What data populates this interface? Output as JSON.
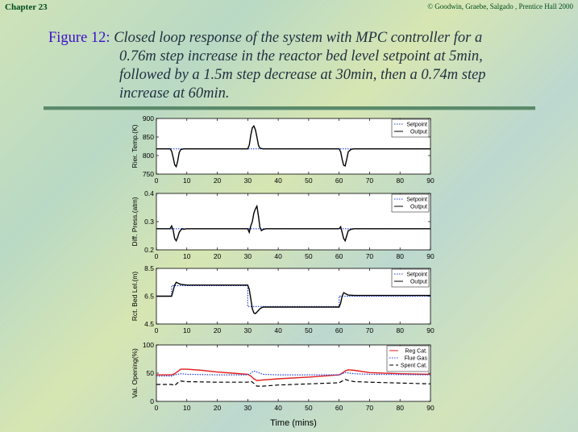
{
  "header": {
    "chapter": "Chapter 23",
    "copyright": "© Goodwin, Graebe, Salgado , Prentice Hall 2000"
  },
  "caption": {
    "figure_label": "Figure 12:",
    "line1": "Closed loop response of the system with MPC controller for a",
    "line2": "0.76m step increase in the reactor bed level setpoint at 5min,",
    "line3": "followed by a 1.5m step decrease at 30min, then a 0.74m step",
    "line4": "increase at 60min."
  },
  "chart_data": [
    {
      "type": "line",
      "ylabel": "Rier. Temp.(K)",
      "ylim": [
        750,
        900
      ],
      "yticks": [
        750,
        800,
        850,
        900
      ],
      "xlim": [
        0,
        90
      ],
      "xticks": [
        0,
        10,
        20,
        30,
        40,
        50,
        60,
        70,
        80,
        90
      ],
      "legend": [
        "Setpoint",
        "Output"
      ],
      "series": [
        {
          "name": "Setpoint",
          "color": "#1f3fd6",
          "dash": "dotted",
          "x": [
            0,
            90
          ],
          "y": [
            818,
            818
          ]
        },
        {
          "name": "Output",
          "color": "#000000",
          "dash": "solid",
          "x": [
            0,
            4.5,
            5,
            5.5,
            6,
            6.5,
            7,
            7.5,
            8,
            9,
            10,
            30,
            30.5,
            31,
            31.5,
            32,
            32.5,
            33,
            33.5,
            34,
            35,
            60,
            60.5,
            61,
            61.5,
            62,
            62.5,
            63,
            64,
            65,
            90
          ],
          "y": [
            818,
            818,
            812,
            795,
            775,
            770,
            785,
            808,
            816,
            818,
            818,
            818,
            828,
            855,
            875,
            880,
            870,
            850,
            828,
            820,
            818,
            818,
            810,
            790,
            774,
            772,
            790,
            810,
            817,
            818,
            818
          ]
        }
      ]
    },
    {
      "type": "line",
      "ylabel": "Diff. Press.(atm)",
      "ylim": [
        0.2,
        0.4
      ],
      "yticks": [
        0.2,
        0.3,
        0.4
      ],
      "xlim": [
        0,
        90
      ],
      "xticks": [
        0,
        10,
        20,
        30,
        40,
        50,
        60,
        70,
        80,
        90
      ],
      "legend": [
        "Setpoint",
        "Output"
      ],
      "series": [
        {
          "name": "Setpoint",
          "color": "#1f3fd6",
          "dash": "dotted",
          "x": [
            0,
            90
          ],
          "y": [
            0.275,
            0.275
          ]
        },
        {
          "name": "Output",
          "color": "#000000",
          "dash": "solid",
          "x": [
            0,
            4.5,
            5,
            5.5,
            6,
            6.5,
            7,
            7.5,
            8,
            8.5,
            9,
            10,
            30,
            30.5,
            31,
            31.5,
            32,
            32.5,
            33,
            33.5,
            34,
            34.5,
            35,
            36,
            60,
            60.5,
            61,
            61.5,
            62,
            62.5,
            63,
            64,
            65,
            90
          ],
          "y": [
            0.275,
            0.275,
            0.285,
            0.27,
            0.24,
            0.232,
            0.245,
            0.262,
            0.27,
            0.275,
            0.273,
            0.275,
            0.275,
            0.262,
            0.285,
            0.3,
            0.33,
            0.345,
            0.355,
            0.32,
            0.28,
            0.268,
            0.272,
            0.275,
            0.275,
            0.282,
            0.262,
            0.24,
            0.232,
            0.25,
            0.268,
            0.273,
            0.275,
            0.275
          ]
        }
      ]
    },
    {
      "type": "line",
      "ylabel": "Rct. Bed Lel.(m)",
      "ylim": [
        4.5,
        8.5
      ],
      "yticks": [
        4.5,
        6.5,
        8.5
      ],
      "xlim": [
        0,
        90
      ],
      "xticks": [
        0,
        10,
        20,
        30,
        40,
        50,
        60,
        70,
        80,
        90
      ],
      "legend": [
        "Setpoint",
        "Output"
      ],
      "series": [
        {
          "name": "Setpoint",
          "color": "#1f3fd6",
          "dash": "dotted",
          "x": [
            0,
            5,
            5,
            30,
            30,
            60,
            60,
            90
          ],
          "y": [
            6.5,
            6.5,
            7.26,
            7.26,
            5.76,
            5.76,
            6.5,
            6.5
          ]
        },
        {
          "name": "Output",
          "color": "#000000",
          "dash": "solid",
          "x": [
            0,
            5,
            5.5,
            6,
            6.5,
            7,
            8,
            10,
            30,
            30.5,
            31,
            31.5,
            32,
            32.5,
            33,
            34,
            35,
            60,
            60.5,
            61,
            61.5,
            62,
            63,
            65,
            90
          ],
          "y": [
            6.5,
            6.5,
            6.9,
            7.3,
            7.5,
            7.45,
            7.35,
            7.3,
            7.3,
            7.0,
            6.3,
            5.6,
            5.3,
            5.25,
            5.35,
            5.6,
            5.72,
            5.72,
            6.0,
            6.5,
            6.75,
            6.7,
            6.58,
            6.55,
            6.55
          ]
        }
      ]
    },
    {
      "type": "line",
      "ylabel": "Val. Opening(%)",
      "xlabel": "Time (mins)",
      "ylim": [
        0,
        100
      ],
      "yticks": [
        0,
        50,
        100
      ],
      "xlim": [
        0,
        90
      ],
      "xticks": [
        0,
        10,
        20,
        30,
        40,
        50,
        60,
        70,
        80,
        90
      ],
      "legend": [
        "Reg Cat.",
        "Flue Gas",
        "Spent Cat."
      ],
      "series": [
        {
          "name": "Reg Cat.",
          "color": "#e21c1c",
          "dash": "solid",
          "x": [
            0,
            5,
            6,
            7,
            8,
            10,
            15,
            20,
            25,
            30,
            31,
            32,
            33,
            35,
            40,
            50,
            60,
            61,
            62,
            63,
            65,
            70,
            80,
            90
          ],
          "y": [
            47,
            47,
            49,
            53,
            57,
            57,
            55,
            52,
            50,
            48,
            45,
            40,
            37,
            38,
            40,
            43,
            47,
            50,
            54,
            56,
            55,
            51,
            49,
            48
          ]
        },
        {
          "name": "Flue Gas",
          "color": "#1f3fd6",
          "dash": "dotted",
          "x": [
            0,
            5,
            6,
            8,
            10,
            20,
            30,
            31,
            32,
            33,
            35,
            40,
            60,
            61,
            62,
            65,
            70,
            90
          ],
          "y": [
            45,
            45,
            47,
            49,
            48,
            47,
            47,
            50,
            54,
            52,
            48,
            47,
            47,
            49,
            51,
            49,
            48,
            47
          ]
        },
        {
          "name": "Spent Cat.",
          "color": "#000000",
          "dash": "dashed",
          "x": [
            0,
            5,
            6,
            7,
            8,
            10,
            20,
            30,
            31,
            32,
            33,
            35,
            40,
            50,
            60,
            61,
            62,
            63,
            65,
            70,
            90
          ],
          "y": [
            30,
            30,
            28,
            33,
            36,
            35,
            34,
            34,
            36,
            32,
            27,
            27,
            29,
            31,
            33,
            36,
            39,
            37,
            35,
            34,
            31
          ]
        }
      ]
    }
  ]
}
